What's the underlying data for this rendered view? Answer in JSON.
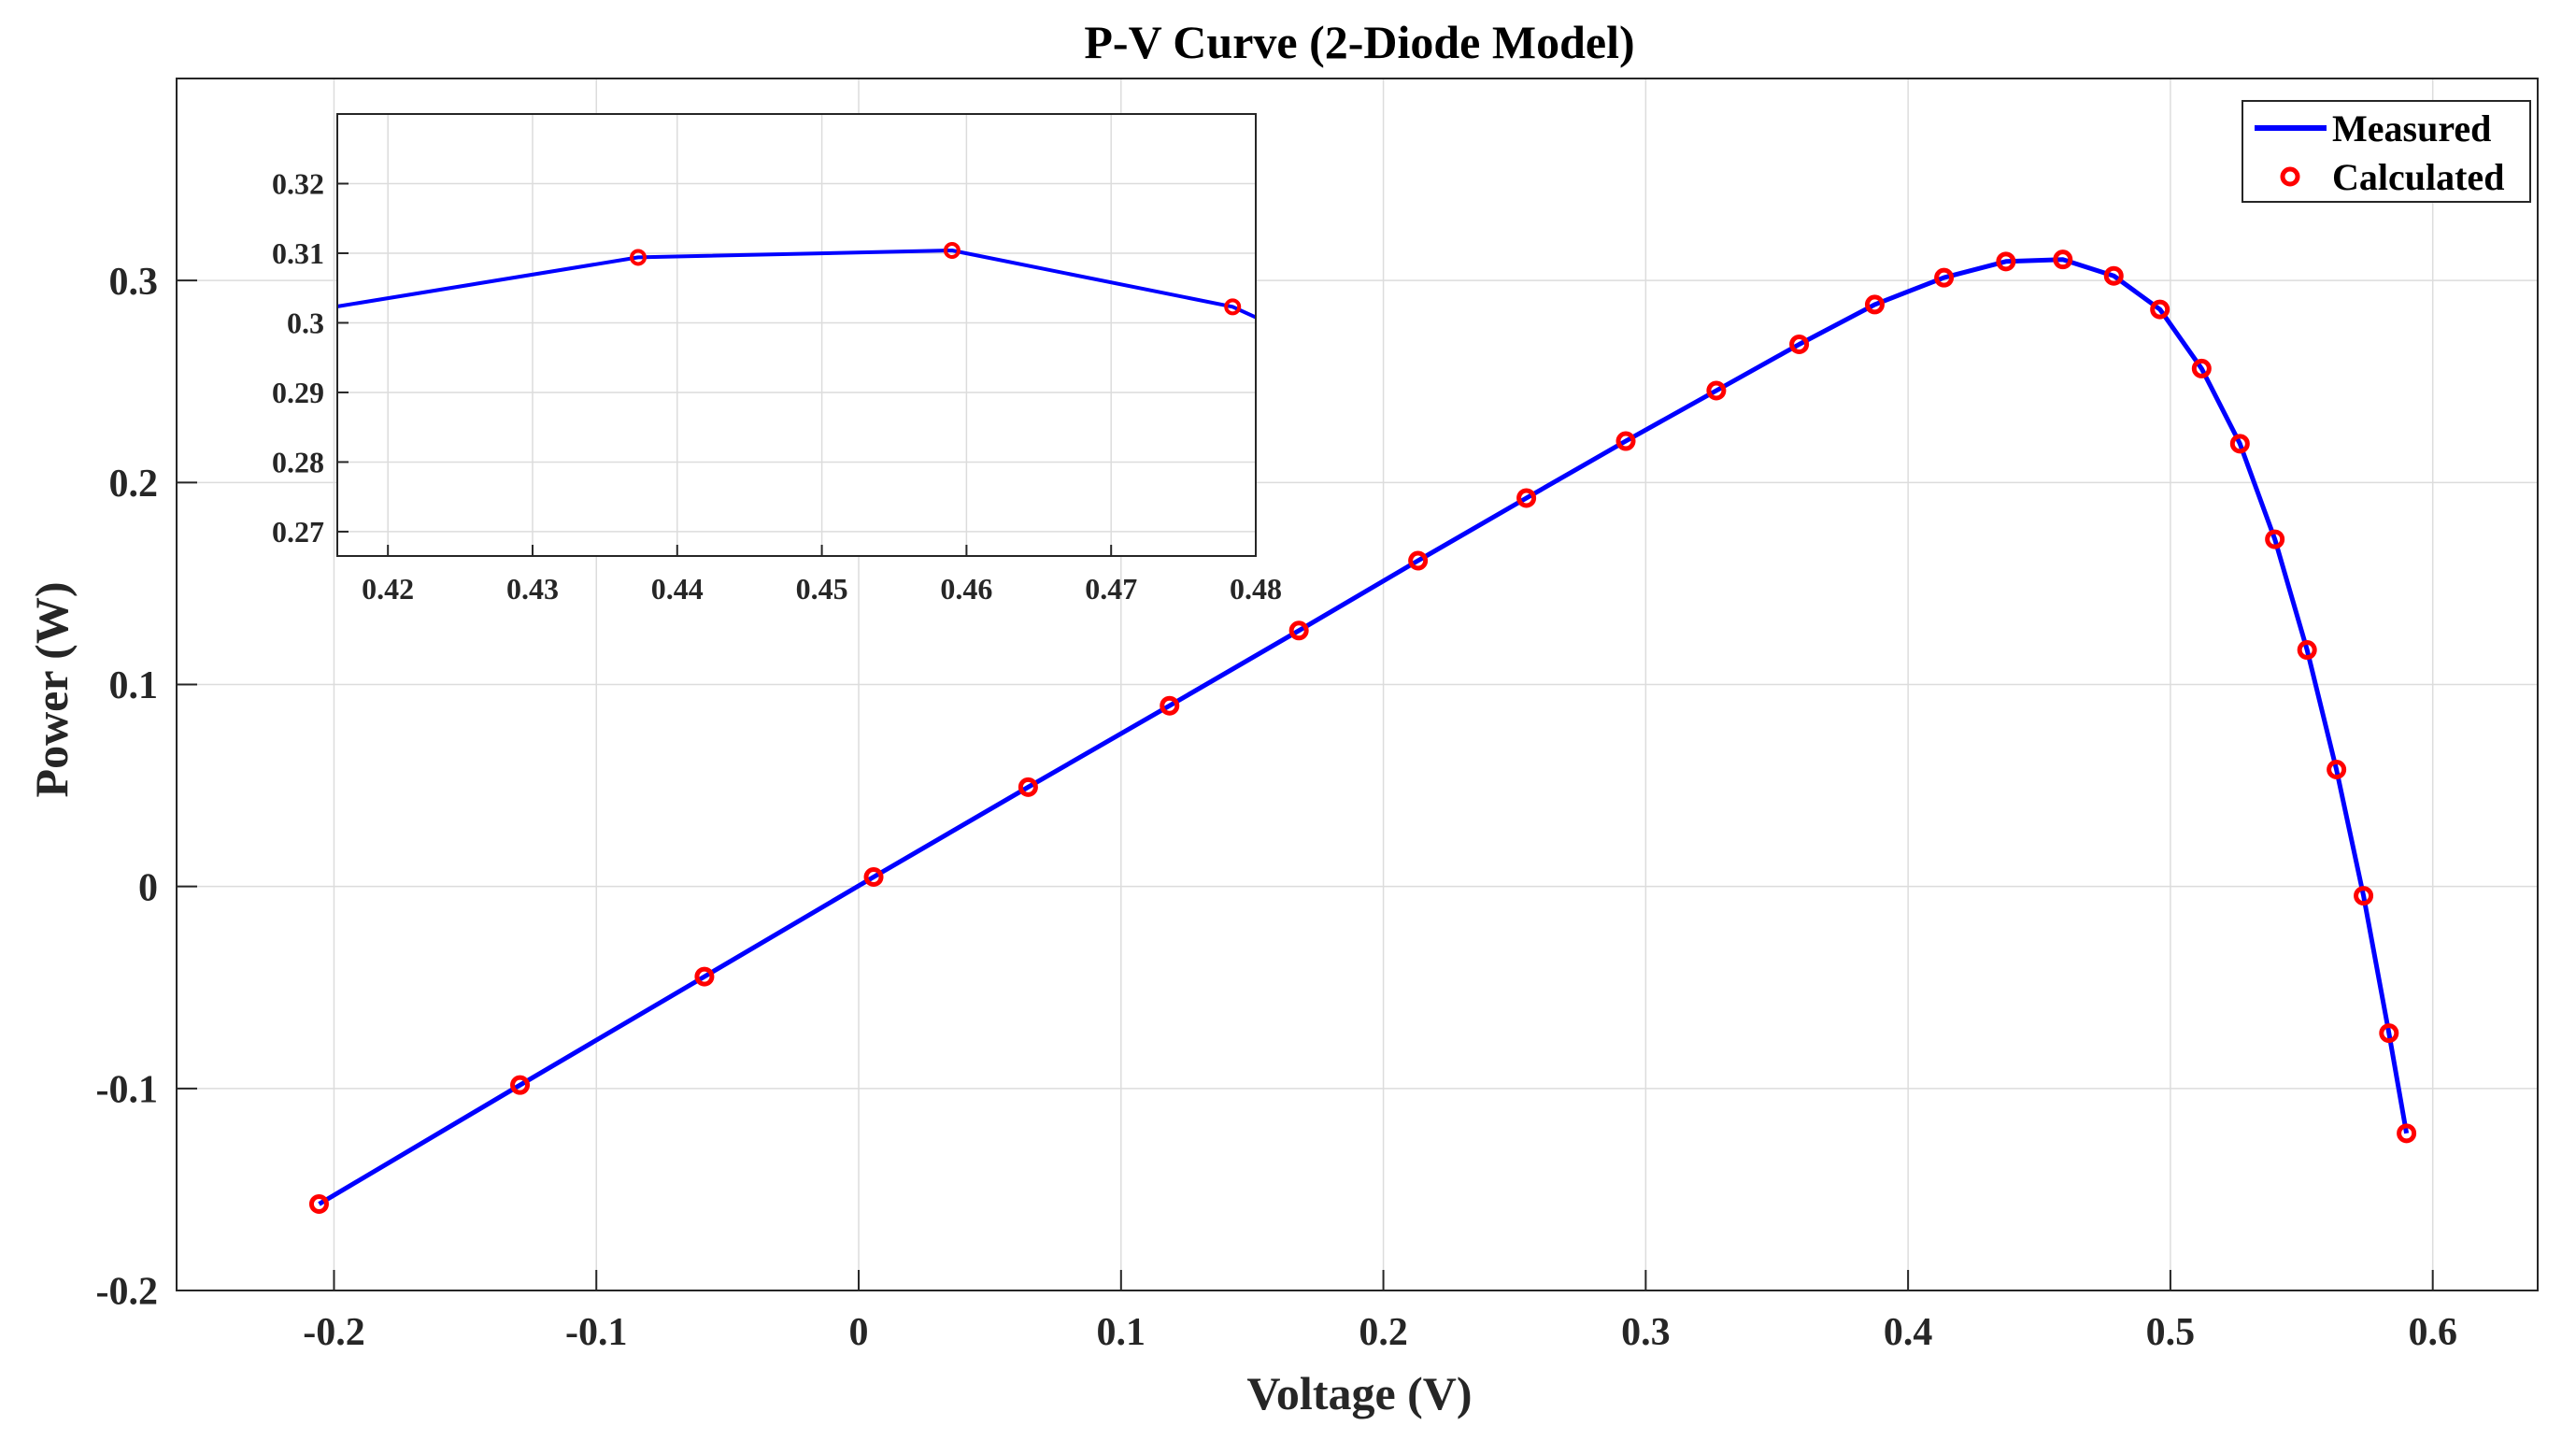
{
  "chart_data": [
    {
      "type": "line",
      "title": "P-V Curve (2-Diode Model)",
      "xlabel": "Voltage (V)",
      "ylabel": "Power (W)",
      "xlim": [
        -0.26,
        0.64
      ],
      "ylim": [
        -0.2,
        0.4
      ],
      "xticks": [
        -0.2,
        -0.1,
        0,
        0.1,
        0.2,
        0.3,
        0.4,
        0.5,
        0.6
      ],
      "xtick_labels": [
        "-0.2",
        "-0.1",
        "0",
        "0.1",
        "0.2",
        "0.3",
        "0.4",
        "0.5",
        "0.6"
      ],
      "yticks": [
        -0.2,
        -0.1,
        0,
        0.1,
        0.2,
        0.3
      ],
      "ytick_labels": [
        "-0.2",
        "-0.1",
        "0",
        "0.1",
        "0.2",
        "0.3"
      ],
      "grid": true,
      "legend_position": "top-right",
      "series": [
        {
          "name": "Measured",
          "style": "line",
          "color": "#0000ff",
          "x": [
            -0.2057,
            -0.1291,
            -0.0588,
            0.0057,
            0.0646,
            0.1185,
            0.1678,
            0.2132,
            0.2545,
            0.2924,
            0.3269,
            0.3585,
            0.3873,
            0.4137,
            0.4373,
            0.459,
            0.4784,
            0.496,
            0.5119,
            0.5265,
            0.5398,
            0.5521,
            0.5633,
            0.5736,
            0.5833,
            0.59
          ],
          "y": [
            -0.1572,
            -0.0983,
            -0.0446,
            0.0047,
            0.0492,
            0.0895,
            0.1267,
            0.1613,
            0.1923,
            0.2205,
            0.2455,
            0.2684,
            0.2881,
            0.3014,
            0.3094,
            0.3104,
            0.3023,
            0.2857,
            0.2564,
            0.2192,
            0.1719,
            0.1171,
            0.0579,
            -0.0046,
            -0.0726,
            -0.1222
          ]
        },
        {
          "name": "Calculated",
          "style": "markers",
          "marker": "circle",
          "color": "#ff0000",
          "x": [
            -0.2057,
            -0.1291,
            -0.0588,
            0.0057,
            0.0646,
            0.1185,
            0.1678,
            0.2132,
            0.2545,
            0.2924,
            0.3269,
            0.3585,
            0.3873,
            0.4137,
            0.4373,
            0.459,
            0.4784,
            0.496,
            0.5119,
            0.5265,
            0.5398,
            0.5521,
            0.5633,
            0.5736,
            0.5833,
            0.59
          ],
          "y": [
            -0.1572,
            -0.0983,
            -0.0446,
            0.0047,
            0.0492,
            0.0895,
            0.1267,
            0.1613,
            0.1923,
            0.2205,
            0.2455,
            0.2684,
            0.2881,
            0.3014,
            0.3094,
            0.3104,
            0.3023,
            0.2857,
            0.2564,
            0.2192,
            0.1719,
            0.1171,
            0.0579,
            -0.0046,
            -0.0726,
            -0.1222
          ]
        }
      ]
    },
    {
      "type": "line",
      "title": "",
      "xlabel": "",
      "ylabel": "",
      "xlim": [
        0.4165,
        0.48
      ],
      "ylim": [
        0.2665,
        0.33
      ],
      "xticks": [
        0.42,
        0.43,
        0.44,
        0.45,
        0.46,
        0.47,
        0.48
      ],
      "xtick_labels": [
        "0.42",
        "0.43",
        "0.44",
        "0.45",
        "0.46",
        "0.47",
        "0.48"
      ],
      "yticks": [
        0.27,
        0.28,
        0.29,
        0.3,
        0.31,
        0.32
      ],
      "ytick_labels": [
        "0.27",
        "0.28",
        "0.29",
        "0.3",
        "0.31",
        "0.32"
      ],
      "grid": true,
      "series": [
        {
          "name": "Measured",
          "style": "line",
          "color": "#0000ff",
          "x": [
            0.4137,
            0.4373,
            0.459,
            0.4784,
            0.496
          ],
          "y": [
            0.3014,
            0.3094,
            0.3104,
            0.3023,
            0.2857
          ]
        },
        {
          "name": "Calculated",
          "style": "markers",
          "marker": "circle",
          "color": "#ff0000",
          "x": [
            0.4373,
            0.459,
            0.4784
          ],
          "y": [
            0.3094,
            0.3104,
            0.3023
          ]
        }
      ]
    }
  ]
}
